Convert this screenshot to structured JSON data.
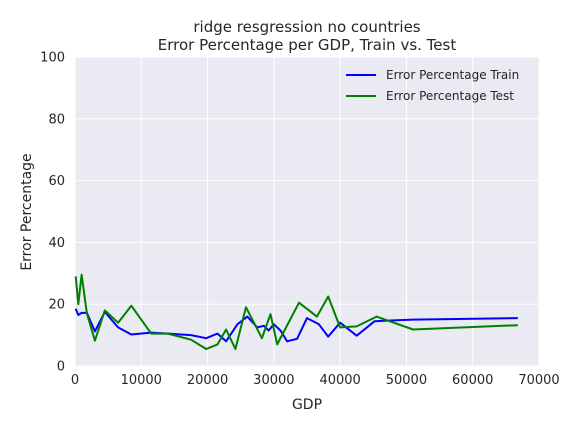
{
  "chart_data": {
    "type": "line",
    "title_line1": "ridge resgression no countries",
    "title_line2": "Error Percentage per GDP, Train vs. Test",
    "xlabel": "GDP",
    "ylabel": "Error Percentage",
    "xlim": [
      0,
      70000
    ],
    "ylim": [
      0,
      100
    ],
    "xticks": [
      0,
      10000,
      20000,
      30000,
      40000,
      50000,
      60000,
      70000
    ],
    "yticks": [
      0,
      20,
      40,
      60,
      80,
      100
    ],
    "grid": true,
    "legend_position": "top-right",
    "background_color": "#EAEAF2",
    "series": [
      {
        "name": "Error Percentage Train",
        "color": "#0000ff",
        "points": [
          [
            100,
            18.5
          ],
          [
            500,
            16.5
          ],
          [
            1000,
            17.2
          ],
          [
            1800,
            17.2
          ],
          [
            3000,
            11.2
          ],
          [
            4500,
            17.5
          ],
          [
            6500,
            12.5
          ],
          [
            8500,
            10.2
          ],
          [
            11500,
            10.8
          ],
          [
            14000,
            10.5
          ],
          [
            17500,
            10.0
          ],
          [
            19800,
            9.0
          ],
          [
            21500,
            10.5
          ],
          [
            22800,
            8.0
          ],
          [
            24500,
            13.5
          ],
          [
            26000,
            16.0
          ],
          [
            27500,
            12.5
          ],
          [
            28500,
            13.0
          ],
          [
            29200,
            11.5
          ],
          [
            30000,
            13.5
          ],
          [
            31000,
            11.5
          ],
          [
            32000,
            8.0
          ],
          [
            33500,
            8.8
          ],
          [
            35000,
            15.5
          ],
          [
            36800,
            13.5
          ],
          [
            38200,
            9.5
          ],
          [
            40000,
            14.0
          ],
          [
            42500,
            9.8
          ],
          [
            45200,
            14.5
          ],
          [
            51000,
            15.0
          ],
          [
            66800,
            15.5
          ]
        ]
      },
      {
        "name": "Error Percentage Test",
        "color": "#008000",
        "points": [
          [
            100,
            29.0
          ],
          [
            500,
            20.0
          ],
          [
            1000,
            29.5
          ],
          [
            1800,
            17.0
          ],
          [
            3000,
            8.2
          ],
          [
            4500,
            18.0
          ],
          [
            6500,
            14.0
          ],
          [
            8500,
            19.5
          ],
          [
            11500,
            10.5
          ],
          [
            14000,
            10.5
          ],
          [
            17500,
            8.5
          ],
          [
            19800,
            5.5
          ],
          [
            21500,
            7.0
          ],
          [
            22800,
            11.8
          ],
          [
            24200,
            5.5
          ],
          [
            25800,
            19.0
          ],
          [
            28200,
            9.0
          ],
          [
            29500,
            16.8
          ],
          [
            30500,
            7.0
          ],
          [
            33800,
            20.5
          ],
          [
            36500,
            16.0
          ],
          [
            38200,
            22.5
          ],
          [
            40000,
            12.5
          ],
          [
            42500,
            12.8
          ],
          [
            45500,
            16.0
          ],
          [
            51000,
            11.8
          ],
          [
            66800,
            13.2
          ]
        ]
      }
    ]
  }
}
